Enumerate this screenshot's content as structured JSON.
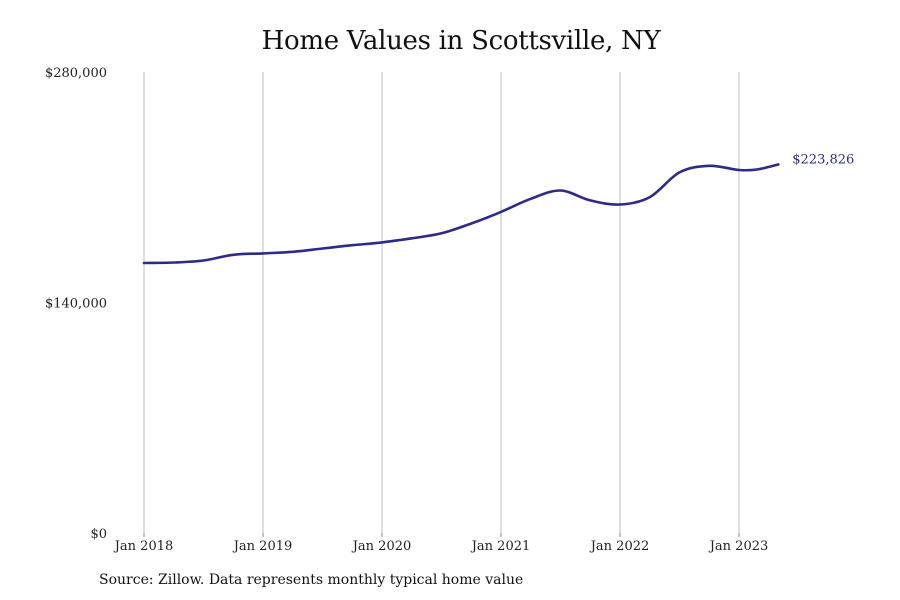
{
  "chart_data": {
    "type": "line",
    "title": "Home Values in Scottsville, NY",
    "xlabel": "",
    "ylabel": "",
    "ylim": [
      0,
      280000
    ],
    "y_ticks": [
      0,
      140000,
      280000
    ],
    "y_tick_labels": [
      "$0",
      "$140,000",
      "$280,000"
    ],
    "x_ticks": [
      2018,
      2019,
      2020,
      2021,
      2022,
      2023
    ],
    "x_tick_labels": [
      "Jan 2018",
      "Jan 2019",
      "Jan 2020",
      "Jan 2021",
      "Jan 2022",
      "Jan 2023"
    ],
    "grid": "vertical",
    "line_color": "#2e2a8a",
    "end_label": "$223,826",
    "series": [
      {
        "x": [
          2018.0,
          2018.25,
          2018.5,
          2018.75,
          2019.0,
          2019.25,
          2019.5,
          2019.75,
          2020.0,
          2020.25,
          2020.5,
          2020.75,
          2021.0,
          2021.25,
          2021.5,
          2021.75,
          2022.0,
          2022.25,
          2022.5,
          2022.75,
          2023.0,
          2023.15,
          2023.33
        ],
        "values": [
          164000,
          164300,
          165500,
          169000,
          169800,
          170800,
          172800,
          174800,
          176500,
          179000,
          182000,
          188000,
          195000,
          203000,
          208000,
          202000,
          199500,
          204000,
          219000,
          223000,
          220500,
          220800,
          223826
        ]
      }
    ]
  },
  "footer": {
    "source": "Source: Zillow. Data represents monthly typical home value"
  }
}
